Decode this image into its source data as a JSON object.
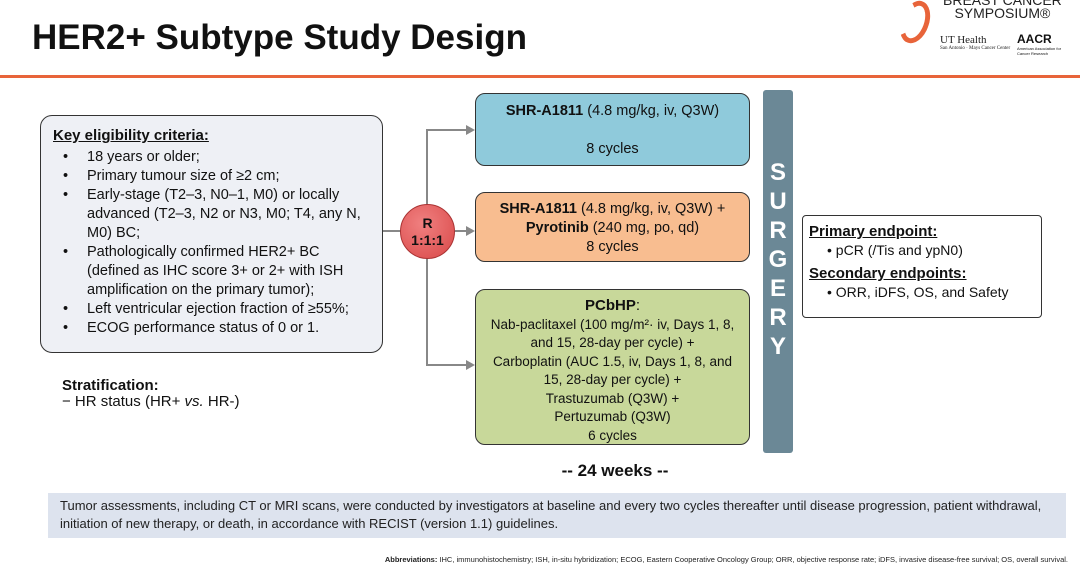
{
  "title": "HER2+ Subtype Study Design",
  "logo": {
    "line1": "BREAST CANCER",
    "line2": "SYMPOSIUM®",
    "ut": "UT Health",
    "ut_sub": "San Antonio · Mays Cancer Center",
    "aacr": "AACR",
    "aacr_sub": "American Association for Cancer Research"
  },
  "eligibility": {
    "heading": "Key eligibility criteria:",
    "items": [
      "18 years or older;",
      "Primary tumour size of ≥2 cm;",
      "Early-stage (T2–3, N0–1, M0) or locally advanced (T2–3, N2 or N3, M0; T4, any N, M0) BC;",
      "Pathologically confirmed HER2+ BC (defined as IHC score 3+ or 2+ with ISH amplification on the primary tumor);",
      "Left ventricular ejection fraction of ≥55%;",
      "ECOG performance status of 0 or 1."
    ]
  },
  "stratification": {
    "heading": "Stratification:",
    "item_prefix": "−  HR status (HR+ ",
    "item_vs": "vs.",
    "item_suffix": " HR-)"
  },
  "randomization": {
    "r": "R",
    "ratio": "1:1:1"
  },
  "arms": [
    {
      "drug": "SHR-A1811",
      "dose": " (4.8 mg/kg, iv, Q3W)",
      "cycles": "8 cycles"
    },
    {
      "drug": "SHR-A1811",
      "dose": " (4.8 mg/kg, iv, Q3W) +",
      "drug2": "Pyrotinib",
      "dose2": " (240 mg, po, qd)",
      "cycles": "8 cycles"
    },
    {
      "drug": "PCbHP",
      "colon": ":",
      "lines": [
        "Nab-paclitaxel (100 mg/m²· iv, Days 1, 8, and 15, 28-day per cycle)  +",
        "Carboplatin (AUC 1.5, iv, Days 1, 8, and 15, 28-day per cycle) +",
        "Trastuzumab (Q3W) +",
        "Pertuzumab (Q3W)"
      ],
      "cycles": "6 cycles"
    }
  ],
  "surgery": [
    "S",
    "U",
    "R",
    "G",
    "E",
    "R",
    "Y"
  ],
  "endpoints": {
    "primary_heading": "Primary endpoint:",
    "primary": "•   pCR (/Tis and ypN0)",
    "secondary_heading": "Secondary endpoints:",
    "secondary": "•   ORR, iDFS, OS, and Safety"
  },
  "duration": "--   24 weeks   --",
  "note": "Tumor assessments, including CT or MRI scans, were conducted by investigators at baseline and every two cycles thereafter until disease progression, patient withdrawal, initiation of new therapy, or death, in accordance with RECIST (version 1.1) guidelines.",
  "abbreviations": {
    "label": "Abbreviations:",
    "text": " IHC, immunohistochemistry; ISH, in-situ hybridization; ECOG, Eastern Cooperative Oncology Group; ORR, objective response rate; iDFS, invasive disease-free survival; OS, overall survival."
  },
  "colors": {
    "accent": "#e8643a",
    "arm1": "#8fcadb",
    "arm2": "#f8bd90",
    "arm3": "#c8d89a",
    "surgery": "#6b8896",
    "randomization": "#d94848"
  }
}
